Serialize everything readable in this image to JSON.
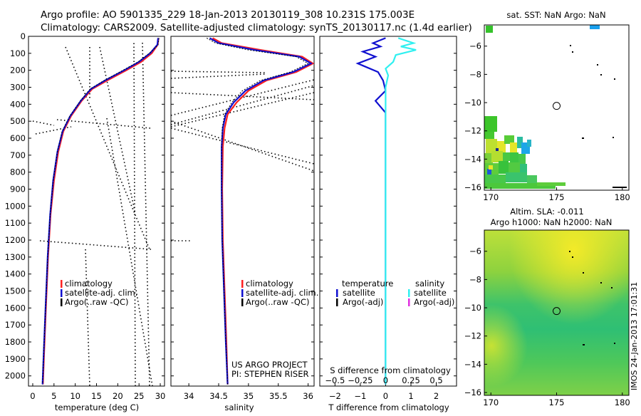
{
  "header": {
    "line1": "Argo profile: AO 5901335_229 18-Jan-2013 20130119_308 10.231S 175.003E",
    "line2": "Climatology: CARS2009. Satellite-adjusted climatology: synTS_20130117.nc (1.4d earlier)"
  },
  "colors": {
    "climatology": "#ff2020",
    "satellite": "#1010d0",
    "argo": "#000000",
    "sat_diff_salinity": "#30f0f0",
    "argo_diff_salinity": "#e030e0"
  },
  "footer": {
    "project": "US ARGO PROJECT",
    "pi": "PI: STEPHEN RISER",
    "timestamp": "IMOS 24-Jan-2013 17:01:31"
  },
  "chart_data": [
    {
      "type": "line",
      "id": "temperature",
      "xlabel": "temperature (deg C)",
      "ylabel": "",
      "xlim": [
        -1,
        31
      ],
      "ylim": [
        2060,
        0
      ],
      "xticks": [
        0,
        5,
        10,
        15,
        20,
        25,
        30
      ],
      "xtick_labels": [
        "0",
        "5",
        "10",
        "15",
        "20",
        "25",
        "30"
      ],
      "yticks": [
        0,
        100,
        200,
        300,
        400,
        500,
        600,
        700,
        800,
        900,
        1000,
        1100,
        1200,
        1300,
        1400,
        1500,
        1600,
        1700,
        1800,
        1900,
        2000
      ],
      "ytick_labels": [
        "0",
        "100",
        "200",
        "300",
        "400",
        "500",
        "600",
        "700",
        "800",
        "900",
        "1000",
        "1100",
        "1200",
        "1300",
        "1400",
        "1500",
        "1600",
        "1700",
        "1800",
        "1900",
        "2000"
      ],
      "legend": [
        "climatology",
        "satellite-adj. clim.",
        "Argo(..raw -QC)"
      ],
      "legend_position": "bottom-center",
      "series": [
        {
          "name": "climatology",
          "color": "#ff2020",
          "points": [
            [
              29.6,
              10
            ],
            [
              29.4,
              50
            ],
            [
              28.0,
              100
            ],
            [
              25.5,
              150
            ],
            [
              22.0,
              200
            ],
            [
              17.5,
              260
            ],
            [
              14.0,
              310
            ],
            [
              11.5,
              380
            ],
            [
              9.0,
              470
            ],
            [
              7.2,
              560
            ],
            [
              6.0,
              680
            ],
            [
              5.0,
              850
            ],
            [
              4.2,
              1050
            ],
            [
              3.6,
              1300
            ],
            [
              3.1,
              1600
            ],
            [
              2.7,
              1850
            ],
            [
              2.4,
              2050
            ]
          ]
        },
        {
          "name": "satellite-adj. clim.",
          "color": "#1010d0",
          "points": [
            [
              29.5,
              10
            ],
            [
              29.3,
              50
            ],
            [
              27.6,
              100
            ],
            [
              25.0,
              150
            ],
            [
              21.5,
              200
            ],
            [
              17.0,
              260
            ],
            [
              13.7,
              310
            ],
            [
              11.3,
              380
            ],
            [
              8.8,
              470
            ],
            [
              7.0,
              560
            ],
            [
              5.8,
              680
            ],
            [
              4.8,
              850
            ],
            [
              4.1,
              1050
            ],
            [
              3.5,
              1300
            ],
            [
              3.0,
              1600
            ],
            [
              2.6,
              1850
            ],
            [
              2.3,
              2050
            ]
          ]
        },
        {
          "name": "Argo(..raw -QC)",
          "color": "#000000",
          "points": [
            [
              29.7,
              10
            ],
            [
              29.5,
              50
            ],
            [
              27.4,
              100
            ],
            [
              24.8,
              150
            ],
            [
              21.2,
              200
            ],
            [
              16.8,
              260
            ],
            [
              13.5,
              310
            ],
            [
              11.2,
              380
            ],
            [
              8.7,
              470
            ],
            [
              6.9,
              560
            ],
            [
              5.8,
              680
            ],
            [
              4.8,
              850
            ],
            [
              4.1,
              1050
            ],
            [
              3.5,
              1300
            ],
            [
              3.0,
              1600
            ],
            [
              2.6,
              1850
            ],
            [
              2.3,
              2050
            ]
          ]
        }
      ]
    },
    {
      "type": "line",
      "id": "salinity",
      "xlabel": "salinity",
      "ylabel": "",
      "xlim": [
        33.7,
        36.1
      ],
      "ylim": [
        2060,
        0
      ],
      "xticks": [
        34,
        34.5,
        35,
        35.5,
        36
      ],
      "xtick_labels": [
        "34",
        "34.5",
        "35",
        "35.5",
        "36"
      ],
      "legend": [
        "climatology",
        "satellite-adj. clim.",
        "Argo(..raw -QC)"
      ],
      "legend_position": "bottom-center",
      "series": [
        {
          "name": "climatology",
          "color": "#ff2020",
          "points": [
            [
              34.4,
              10
            ],
            [
              34.55,
              40
            ],
            [
              35.2,
              80
            ],
            [
              35.9,
              120
            ],
            [
              36.08,
              160
            ],
            [
              35.8,
              210
            ],
            [
              35.3,
              260
            ],
            [
              35.0,
              320
            ],
            [
              34.8,
              390
            ],
            [
              34.65,
              460
            ],
            [
              34.6,
              540
            ],
            [
              34.57,
              650
            ],
            [
              34.56,
              900
            ],
            [
              34.57,
              1200
            ],
            [
              34.6,
              1500
            ],
            [
              34.63,
              1800
            ],
            [
              34.65,
              2050
            ]
          ]
        },
        {
          "name": "satellite-adj. clim.",
          "color": "#1010d0",
          "points": [
            [
              34.35,
              10
            ],
            [
              34.5,
              40
            ],
            [
              35.1,
              80
            ],
            [
              35.85,
              120
            ],
            [
              36.05,
              160
            ],
            [
              35.75,
              210
            ],
            [
              35.25,
              260
            ],
            [
              34.95,
              320
            ],
            [
              34.75,
              390
            ],
            [
              34.62,
              460
            ],
            [
              34.57,
              540
            ],
            [
              34.55,
              650
            ],
            [
              34.55,
              900
            ],
            [
              34.56,
              1200
            ],
            [
              34.59,
              1500
            ],
            [
              34.62,
              1800
            ],
            [
              34.65,
              2050
            ]
          ]
        },
        {
          "name": "Argo(..raw -QC)",
          "color": "#000000",
          "points": [
            [
              34.3,
              10
            ],
            [
              34.45,
              40
            ],
            [
              35.0,
              80
            ],
            [
              35.8,
              120
            ],
            [
              36.0,
              160
            ],
            [
              35.7,
              210
            ],
            [
              35.2,
              260
            ],
            [
              34.9,
              320
            ],
            [
              34.72,
              390
            ],
            [
              34.6,
              460
            ],
            [
              34.56,
              540
            ],
            [
              34.55,
              650
            ],
            [
              34.55,
              900
            ],
            [
              34.56,
              1200
            ],
            [
              34.59,
              1500
            ],
            [
              34.62,
              1800
            ],
            [
              34.65,
              2050
            ]
          ]
        }
      ]
    },
    {
      "type": "line",
      "id": "difference",
      "xlabel": "T difference from climatology",
      "xlabel_top": "S difference from climatology",
      "xlim": [
        -2.6,
        2.8
      ],
      "ylim": [
        2060,
        0
      ],
      "xticks": [
        -2,
        -1,
        0,
        1,
        2
      ],
      "xtick_labels": [
        "−2",
        "−1",
        "0",
        "1",
        "2"
      ],
      "s_xtick_labels": [
        "−0.5",
        "−0.25",
        "0",
        "0.25",
        "0.5"
      ],
      "legend": [
        "temperature",
        "satellite",
        "Argo(-adj)",
        "salinity",
        "satellite",
        "Argo(-adj)"
      ],
      "legend_position": "bottom-center",
      "series": [
        {
          "name": "temperature satellite",
          "color": "#1010d0",
          "points": [
            [
              0.0,
              10
            ],
            [
              -0.5,
              40
            ],
            [
              -0.2,
              60
            ],
            [
              -0.9,
              90
            ],
            [
              -0.4,
              120
            ],
            [
              -1.1,
              160
            ],
            [
              -0.3,
              210
            ],
            [
              -0.1,
              260
            ],
            [
              0.0,
              320
            ],
            [
              -0.4,
              380
            ],
            [
              0.0,
              450
            ],
            [
              0.0,
              600
            ],
            [
              0.0,
              900
            ],
            [
              0.0,
              1200
            ],
            [
              0.0,
              1500
            ],
            [
              0.0,
              1800
            ],
            [
              0.0,
              2050
            ]
          ]
        },
        {
          "name": "salinity satellite",
          "color": "#30f0f0",
          "points": [
            [
              0.5,
              10
            ],
            [
              1.1,
              40
            ],
            [
              0.6,
              60
            ],
            [
              1.2,
              80
            ],
            [
              0.4,
              110
            ],
            [
              0.3,
              150
            ],
            [
              0.0,
              190
            ],
            [
              0.1,
              230
            ],
            [
              0.0,
              300
            ],
            [
              0.0,
              400
            ],
            [
              0.0,
              600
            ],
            [
              0.0,
              900
            ],
            [
              0.0,
              1200
            ],
            [
              0.0,
              1500
            ],
            [
              0.0,
              1800
            ],
            [
              0.0,
              2050
            ]
          ]
        }
      ]
    },
    {
      "type": "heatmap",
      "id": "sst-map",
      "title": "sat. SST: NaN Argo: NaN",
      "xlim": [
        169.5,
        180.5
      ],
      "ylim": [
        -16.2,
        -4.5
      ],
      "xticks": [
        170,
        175,
        180
      ],
      "xtick_labels": [
        "170",
        "175",
        "180"
      ],
      "yticks": [
        -6,
        -8,
        -10,
        -12,
        -14,
        -16
      ],
      "ytick_labels": [
        "−6",
        "−8",
        "−10",
        "−12",
        "−14",
        "−16"
      ],
      "marker": [
        175.0,
        -10.231
      ]
    },
    {
      "type": "heatmap",
      "id": "sla-map",
      "title": "Altim. SLA: -0.011",
      "subtitle": "Argo h1000: NaN h2000: NaN",
      "xlim": [
        169.5,
        180.5
      ],
      "ylim": [
        -16.2,
        -4.5
      ],
      "xticks": [
        170,
        175,
        180
      ],
      "xtick_labels": [
        "170",
        "175",
        "180"
      ],
      "yticks": [
        -6,
        -8,
        -10,
        -12,
        -14,
        -16
      ],
      "ytick_labels": [
        "−6",
        "−8",
        "−10",
        "−12",
        "−14",
        "−16"
      ],
      "marker": [
        175.0,
        -10.231
      ]
    }
  ]
}
